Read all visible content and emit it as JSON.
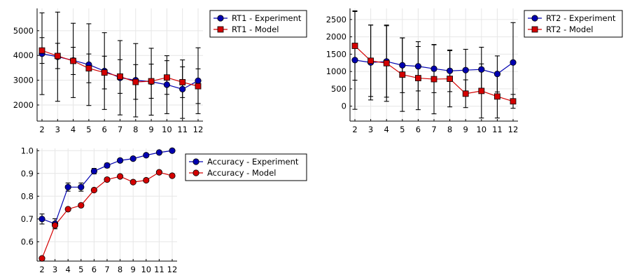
{
  "colors": {
    "experiment": "#0000b0",
    "model": "#d40000"
  },
  "chart_data": [
    {
      "type": "line",
      "categories": [
        2,
        3,
        4,
        5,
        6,
        7,
        8,
        9,
        10,
        11,
        12
      ],
      "ylim": [
        1350,
        5900
      ],
      "yticks": [
        2000,
        3000,
        4000,
        5000
      ],
      "grid": true,
      "legend_position": "outside-top-right",
      "series": [
        {
          "name": "RT1 - Experiment",
          "marker": "circle",
          "color": "#0000b0",
          "values": [
            4070,
            3950,
            3800,
            3630,
            3370,
            3100,
            3000,
            2940,
            2820,
            2640,
            2980
          ],
          "errors": [
            1650,
            1800,
            1500,
            1650,
            1550,
            1500,
            1480,
            1350,
            1170,
            1180,
            1330
          ]
        },
        {
          "name": "RT1 - Model",
          "marker": "square",
          "color": "#d40000",
          "values": [
            4200,
            3980,
            3780,
            3480,
            3310,
            3150,
            2930,
            2960,
            3110,
            2920,
            2760
          ],
          "errors": [
            520,
            510,
            550,
            580,
            660,
            680,
            700,
            690,
            680,
            620,
            700
          ]
        }
      ]
    },
    {
      "type": "line",
      "categories": [
        2,
        3,
        4,
        5,
        6,
        7,
        8,
        9,
        10,
        11,
        12
      ],
      "ylim": [
        -430,
        2820
      ],
      "yticks": [
        0,
        500,
        1000,
        1500,
        2000,
        2500
      ],
      "grid": true,
      "legend_position": "outside-top-right",
      "series": [
        {
          "name": "RT2 - Experiment",
          "marker": "circle",
          "color": "#0000b0",
          "values": [
            1330,
            1260,
            1290,
            1180,
            1150,
            1080,
            1020,
            1040,
            1060,
            930,
            1260
          ],
          "errors": [
            1420,
            1080,
            1030,
            790,
            710,
            690,
            600,
            600,
            640,
            520,
            1150
          ]
        },
        {
          "name": "RT2 - Model",
          "marker": "square",
          "color": "#d40000",
          "values": [
            1740,
            1310,
            1240,
            910,
            810,
            780,
            790,
            360,
            440,
            280,
            140
          ],
          "errors": [
            990,
            1030,
            1100,
            1060,
            910,
            1000,
            810,
            400,
            780,
            620,
            200
          ]
        }
      ]
    },
    {
      "type": "line",
      "categories": [
        2,
        3,
        4,
        5,
        6,
        7,
        8,
        9,
        10,
        11,
        12
      ],
      "ylim": [
        0.515,
        1.01
      ],
      "yticks": [
        0.6,
        0.7,
        0.8,
        0.9,
        1.0
      ],
      "yticklabels": [
        "0.6",
        "0.7",
        "0.8",
        "0.9",
        "1.0"
      ],
      "grid": true,
      "legend_position": "outside-top-right",
      "series": [
        {
          "name": "Accuracy - Experiment",
          "marker": "circle",
          "color": "#0000b0",
          "values": [
            0.7,
            0.679,
            0.84,
            0.84,
            0.91,
            0.935,
            0.957,
            0.965,
            0.98,
            0.992,
            1.0
          ],
          "errors": [
            0.022,
            0.022,
            0.018,
            0.018,
            0.012,
            0.01,
            0.008,
            0.006,
            0.005,
            0.003,
            0.001
          ]
        },
        {
          "name": "Accuracy - Model",
          "marker": "circle",
          "color": "#d40000",
          "values": [
            0.527,
            0.672,
            0.743,
            0.76,
            0.827,
            0.873,
            0.887,
            0.862,
            0.87,
            0.905,
            0.89
          ],
          "errors": []
        }
      ]
    }
  ]
}
